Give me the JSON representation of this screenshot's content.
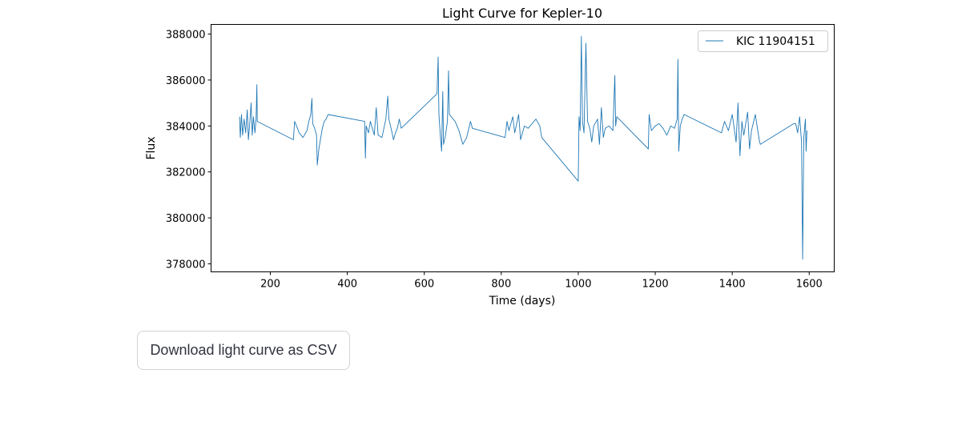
{
  "chart_data": {
    "type": "line",
    "title": "Light Curve for Kepler-10",
    "xlabel": "Time (days)",
    "ylabel": "Flux",
    "xlim": [
      46,
      1665
    ],
    "ylim": [
      377650,
      388420
    ],
    "xticks": [
      200,
      400,
      600,
      800,
      1000,
      1200,
      1400,
      1600
    ],
    "yticks": [
      378000,
      380000,
      382000,
      384000,
      386000,
      388000
    ],
    "grid": false,
    "legend_position": "top-right",
    "color": "#1f77b4",
    "series": [
      {
        "name": "KIC 11904151",
        "points": [
          [
            120,
            384400
          ],
          [
            122,
            383500
          ],
          [
            125,
            384500
          ],
          [
            128,
            383600
          ],
          [
            132,
            384300
          ],
          [
            136,
            383700
          ],
          [
            140,
            384700
          ],
          [
            143,
            383400
          ],
          [
            147,
            384200
          ],
          [
            150,
            385000
          ],
          [
            153,
            383600
          ],
          [
            156,
            384400
          ],
          [
            160,
            383700
          ],
          [
            163,
            384300
          ],
          [
            165,
            385800
          ],
          [
            166,
            384200
          ],
          [
            260,
            383400
          ],
          [
            263,
            384200
          ],
          [
            268,
            384000
          ],
          [
            275,
            383700
          ],
          [
            285,
            383500
          ],
          [
            295,
            383800
          ],
          [
            300,
            384200
          ],
          [
            305,
            384500
          ],
          [
            308,
            385200
          ],
          [
            310,
            384100
          ],
          [
            315,
            383900
          ],
          [
            320,
            383600
          ],
          [
            322,
            382300
          ],
          [
            326,
            383000
          ],
          [
            330,
            383400
          ],
          [
            335,
            383900
          ],
          [
            340,
            384200
          ],
          [
            345,
            384300
          ],
          [
            350,
            384500
          ],
          [
            445,
            384200
          ],
          [
            447,
            382600
          ],
          [
            449,
            384000
          ],
          [
            455,
            383700
          ],
          [
            460,
            384200
          ],
          [
            470,
            383600
          ],
          [
            475,
            384800
          ],
          [
            480,
            383600
          ],
          [
            490,
            383500
          ],
          [
            500,
            384300
          ],
          [
            505,
            385300
          ],
          [
            508,
            384300
          ],
          [
            515,
            383800
          ],
          [
            520,
            383400
          ],
          [
            525,
            383700
          ],
          [
            530,
            383900
          ],
          [
            535,
            384300
          ],
          [
            540,
            383900
          ],
          [
            633,
            385400
          ],
          [
            636,
            387000
          ],
          [
            638,
            384500
          ],
          [
            642,
            383500
          ],
          [
            645,
            382900
          ],
          [
            648,
            385500
          ],
          [
            650,
            383200
          ],
          [
            655,
            383600
          ],
          [
            660,
            384200
          ],
          [
            663,
            386400
          ],
          [
            665,
            384500
          ],
          [
            670,
            384400
          ],
          [
            680,
            384200
          ],
          [
            690,
            383800
          ],
          [
            700,
            383200
          ],
          [
            710,
            383500
          ],
          [
            720,
            384200
          ],
          [
            725,
            383900
          ],
          [
            810,
            383500
          ],
          [
            815,
            384200
          ],
          [
            820,
            383800
          ],
          [
            830,
            384400
          ],
          [
            835,
            383700
          ],
          [
            845,
            384500
          ],
          [
            850,
            383400
          ],
          [
            860,
            384000
          ],
          [
            870,
            383900
          ],
          [
            880,
            384100
          ],
          [
            890,
            384300
          ],
          [
            900,
            384000
          ],
          [
            905,
            383500
          ],
          [
            1000,
            381600
          ],
          [
            1002,
            384400
          ],
          [
            1005,
            383800
          ],
          [
            1008,
            387900
          ],
          [
            1011,
            384200
          ],
          [
            1015,
            383700
          ],
          [
            1020,
            387600
          ],
          [
            1024,
            384200
          ],
          [
            1030,
            383900
          ],
          [
            1035,
            383300
          ],
          [
            1040,
            384000
          ],
          [
            1050,
            384300
          ],
          [
            1055,
            383200
          ],
          [
            1060,
            384800
          ],
          [
            1065,
            383500
          ],
          [
            1070,
            383900
          ],
          [
            1080,
            384000
          ],
          [
            1090,
            383800
          ],
          [
            1095,
            386200
          ],
          [
            1097,
            384000
          ],
          [
            1100,
            384400
          ],
          [
            1182,
            383000
          ],
          [
            1184,
            384500
          ],
          [
            1190,
            383800
          ],
          [
            1200,
            384000
          ],
          [
            1210,
            384100
          ],
          [
            1220,
            383900
          ],
          [
            1230,
            383600
          ],
          [
            1240,
            384000
          ],
          [
            1250,
            383900
          ],
          [
            1257,
            384300
          ],
          [
            1259,
            386900
          ],
          [
            1261,
            382900
          ],
          [
            1265,
            384000
          ],
          [
            1270,
            384300
          ],
          [
            1275,
            384500
          ],
          [
            1372,
            383700
          ],
          [
            1380,
            384200
          ],
          [
            1390,
            383800
          ],
          [
            1400,
            384500
          ],
          [
            1410,
            383300
          ],
          [
            1415,
            385000
          ],
          [
            1420,
            382700
          ],
          [
            1425,
            384200
          ],
          [
            1430,
            383600
          ],
          [
            1440,
            384600
          ],
          [
            1445,
            383000
          ],
          [
            1450,
            383800
          ],
          [
            1460,
            384500
          ],
          [
            1470,
            383400
          ],
          [
            1473,
            383200
          ],
          [
            1560,
            384100
          ],
          [
            1565,
            384100
          ],
          [
            1570,
            383700
          ],
          [
            1575,
            384400
          ],
          [
            1580,
            383300
          ],
          [
            1583,
            378200
          ],
          [
            1586,
            383500
          ],
          [
            1590,
            384300
          ],
          [
            1592,
            382900
          ],
          [
            1594,
            383800
          ]
        ]
      }
    ]
  },
  "download_button": {
    "label": "Download light curve as CSV"
  }
}
